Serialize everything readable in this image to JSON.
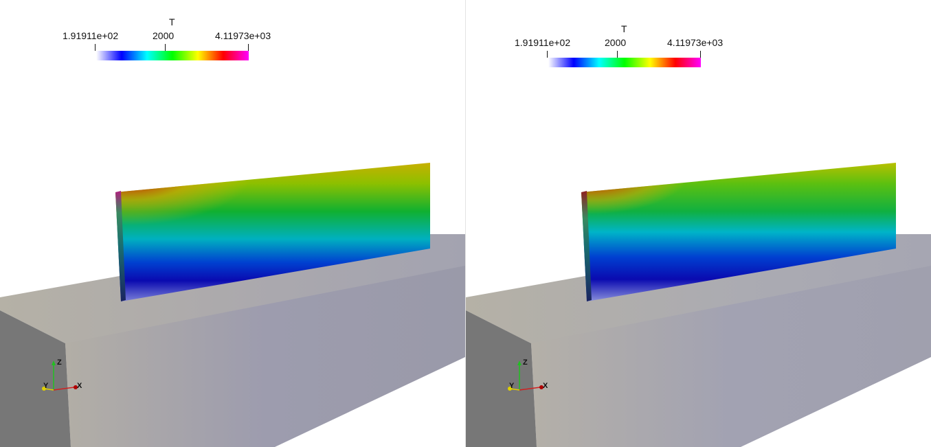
{
  "colormap": [
    "#ffffff",
    "#0000ff",
    "#00ffff",
    "#00ff00",
    "#ffff00",
    "#ff0000",
    "#ff00ff"
  ],
  "views": [
    {
      "legend": {
        "title": "T",
        "min_label": "1.91911e+02",
        "mid_label": "2000",
        "max_label": "4.11973e+03"
      },
      "axes": {
        "z": "Z",
        "y": "Y",
        "x": "X"
      }
    },
    {
      "legend": {
        "title": "T",
        "min_label": "1.91911e+02",
        "mid_label": "2000",
        "max_label": "4.11973e+03"
      },
      "axes": {
        "z": "Z",
        "y": "Y",
        "x": "X"
      }
    }
  ]
}
